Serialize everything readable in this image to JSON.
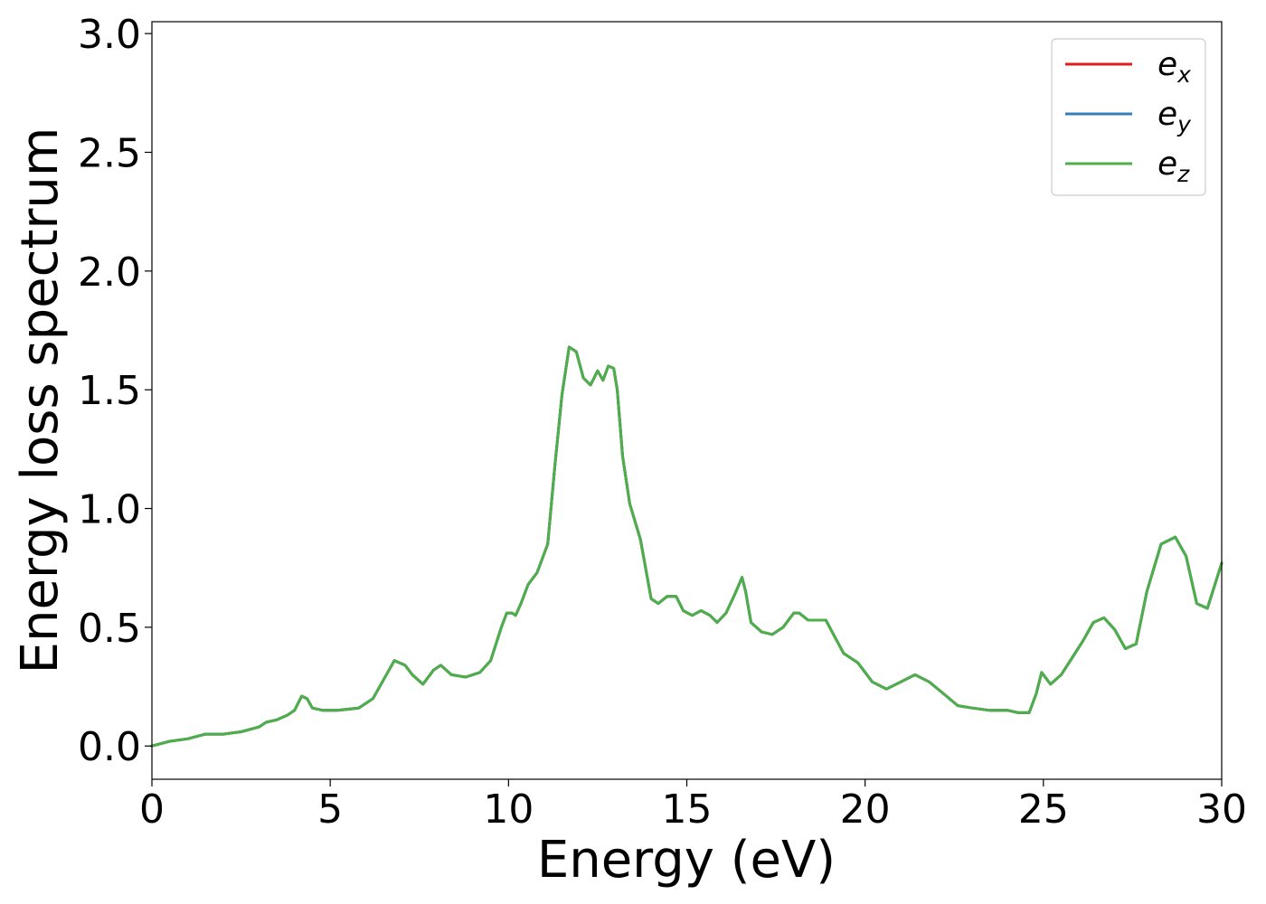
{
  "chart_data": {
    "type": "line",
    "title": "",
    "xlabel": "Energy (eV)",
    "ylabel": "Energy loss spectrum",
    "xlim": [
      0,
      30
    ],
    "ylim": [
      -0.14,
      3.05
    ],
    "xticks": [
      0,
      5,
      10,
      15,
      20,
      25,
      30
    ],
    "xtick_labels": [
      "0",
      "5",
      "10",
      "15",
      "20",
      "25",
      "30"
    ],
    "yticks": [
      0.0,
      0.5,
      1.0,
      1.5,
      2.0,
      2.5,
      3.0
    ],
    "ytick_labels": [
      "0.0",
      "0.5",
      "1.0",
      "1.5",
      "2.0",
      "2.5",
      "3.0"
    ],
    "grid": false,
    "legend_position": "top-right",
    "x": [
      0,
      0.5,
      1,
      1.5,
      2,
      2.5,
      3,
      3.2,
      3.5,
      3.8,
      4,
      4.2,
      4.35,
      4.5,
      4.8,
      5.2,
      5.8,
      6.2,
      6.5,
      6.8,
      7.1,
      7.3,
      7.6,
      7.9,
      8.1,
      8.4,
      8.8,
      9.2,
      9.5,
      9.8,
      9.95,
      10.1,
      10.2,
      10.35,
      10.55,
      10.8,
      11.1,
      11.3,
      11.5,
      11.7,
      11.9,
      12.1,
      12.3,
      12.5,
      12.65,
      12.8,
      12.95,
      13.05,
      13.2,
      13.4,
      13.7,
      14,
      14.2,
      14.45,
      14.7,
      14.9,
      15.15,
      15.4,
      15.65,
      15.85,
      16.1,
      16.35,
      16.55,
      16.65,
      16.8,
      17.1,
      17.4,
      17.7,
      18,
      18.15,
      18.4,
      18.7,
      18.9,
      19.15,
      19.4,
      19.8,
      20.2,
      20.6,
      21,
      21.4,
      21.8,
      22.2,
      22.6,
      23,
      23.5,
      24,
      24.3,
      24.6,
      24.8,
      24.95,
      25.2,
      25.5,
      25.8,
      26.1,
      26.4,
      26.7,
      27,
      27.3,
      27.6,
      27.9,
      28.3,
      28.7,
      29,
      29.3,
      29.6,
      30
    ],
    "series": [
      {
        "name": "e",
        "name_subscript": "x",
        "color": "#e41a1c",
        "values": [
          0.0,
          0.02,
          0.03,
          0.05,
          0.05,
          0.06,
          0.08,
          0.1,
          0.11,
          0.13,
          0.15,
          0.21,
          0.2,
          0.16,
          0.15,
          0.15,
          0.16,
          0.2,
          0.28,
          0.36,
          0.34,
          0.3,
          0.26,
          0.32,
          0.34,
          0.3,
          0.29,
          0.31,
          0.36,
          0.5,
          0.56,
          0.56,
          0.55,
          0.6,
          0.68,
          0.73,
          0.85,
          1.18,
          1.48,
          1.68,
          1.66,
          1.55,
          1.52,
          1.58,
          1.54,
          1.6,
          1.59,
          1.5,
          1.22,
          1.02,
          0.87,
          0.62,
          0.6,
          0.63,
          0.63,
          0.57,
          0.55,
          0.57,
          0.55,
          0.52,
          0.56,
          0.64,
          0.71,
          0.65,
          0.52,
          0.48,
          0.47,
          0.5,
          0.56,
          0.56,
          0.53,
          0.53,
          0.53,
          0.46,
          0.39,
          0.35,
          0.27,
          0.24,
          0.27,
          0.3,
          0.27,
          0.22,
          0.17,
          0.16,
          0.15,
          0.15,
          0.14,
          0.14,
          0.22,
          0.31,
          0.26,
          0.3,
          0.37,
          0.44,
          0.52,
          0.54,
          0.49,
          0.41,
          0.43,
          0.65,
          0.85,
          0.88,
          0.8,
          0.6,
          0.58,
          0.77
        ]
      },
      {
        "name": "e",
        "name_subscript": "y",
        "color": "#377eb8",
        "values": [
          0.0,
          0.02,
          0.03,
          0.05,
          0.05,
          0.06,
          0.08,
          0.1,
          0.11,
          0.13,
          0.15,
          0.21,
          0.2,
          0.16,
          0.15,
          0.15,
          0.16,
          0.2,
          0.28,
          0.36,
          0.34,
          0.3,
          0.26,
          0.32,
          0.34,
          0.3,
          0.29,
          0.31,
          0.36,
          0.5,
          0.56,
          0.56,
          0.55,
          0.6,
          0.68,
          0.73,
          0.85,
          1.18,
          1.48,
          1.68,
          1.66,
          1.55,
          1.52,
          1.58,
          1.54,
          1.6,
          1.59,
          1.5,
          1.22,
          1.02,
          0.87,
          0.62,
          0.6,
          0.63,
          0.63,
          0.57,
          0.55,
          0.57,
          0.55,
          0.52,
          0.56,
          0.64,
          0.71,
          0.65,
          0.52,
          0.48,
          0.47,
          0.5,
          0.56,
          0.56,
          0.53,
          0.53,
          0.53,
          0.46,
          0.39,
          0.35,
          0.27,
          0.24,
          0.27,
          0.3,
          0.27,
          0.22,
          0.17,
          0.16,
          0.15,
          0.15,
          0.14,
          0.14,
          0.22,
          0.31,
          0.26,
          0.3,
          0.37,
          0.44,
          0.52,
          0.54,
          0.49,
          0.41,
          0.43,
          0.65,
          0.85,
          0.88,
          0.8,
          0.6,
          0.58,
          0.77
        ]
      },
      {
        "name": "e",
        "name_subscript": "z",
        "color": "#4daf4a",
        "values": [
          0.0,
          0.02,
          0.03,
          0.05,
          0.05,
          0.06,
          0.08,
          0.1,
          0.11,
          0.13,
          0.15,
          0.21,
          0.2,
          0.16,
          0.15,
          0.15,
          0.16,
          0.2,
          0.28,
          0.36,
          0.34,
          0.3,
          0.26,
          0.32,
          0.34,
          0.3,
          0.29,
          0.31,
          0.36,
          0.5,
          0.56,
          0.56,
          0.55,
          0.6,
          0.68,
          0.73,
          0.85,
          1.18,
          1.48,
          1.68,
          1.66,
          1.55,
          1.52,
          1.58,
          1.54,
          1.6,
          1.59,
          1.5,
          1.22,
          1.02,
          0.87,
          0.62,
          0.6,
          0.63,
          0.63,
          0.57,
          0.55,
          0.57,
          0.55,
          0.52,
          0.56,
          0.64,
          0.71,
          0.65,
          0.52,
          0.48,
          0.47,
          0.5,
          0.56,
          0.56,
          0.53,
          0.53,
          0.53,
          0.46,
          0.39,
          0.35,
          0.27,
          0.24,
          0.27,
          0.3,
          0.27,
          0.22,
          0.17,
          0.16,
          0.15,
          0.15,
          0.14,
          0.14,
          0.22,
          0.31,
          0.26,
          0.3,
          0.37,
          0.44,
          0.52,
          0.54,
          0.49,
          0.41,
          0.43,
          0.65,
          0.85,
          0.88,
          0.8,
          0.6,
          0.58,
          0.77
        ]
      }
    ]
  }
}
